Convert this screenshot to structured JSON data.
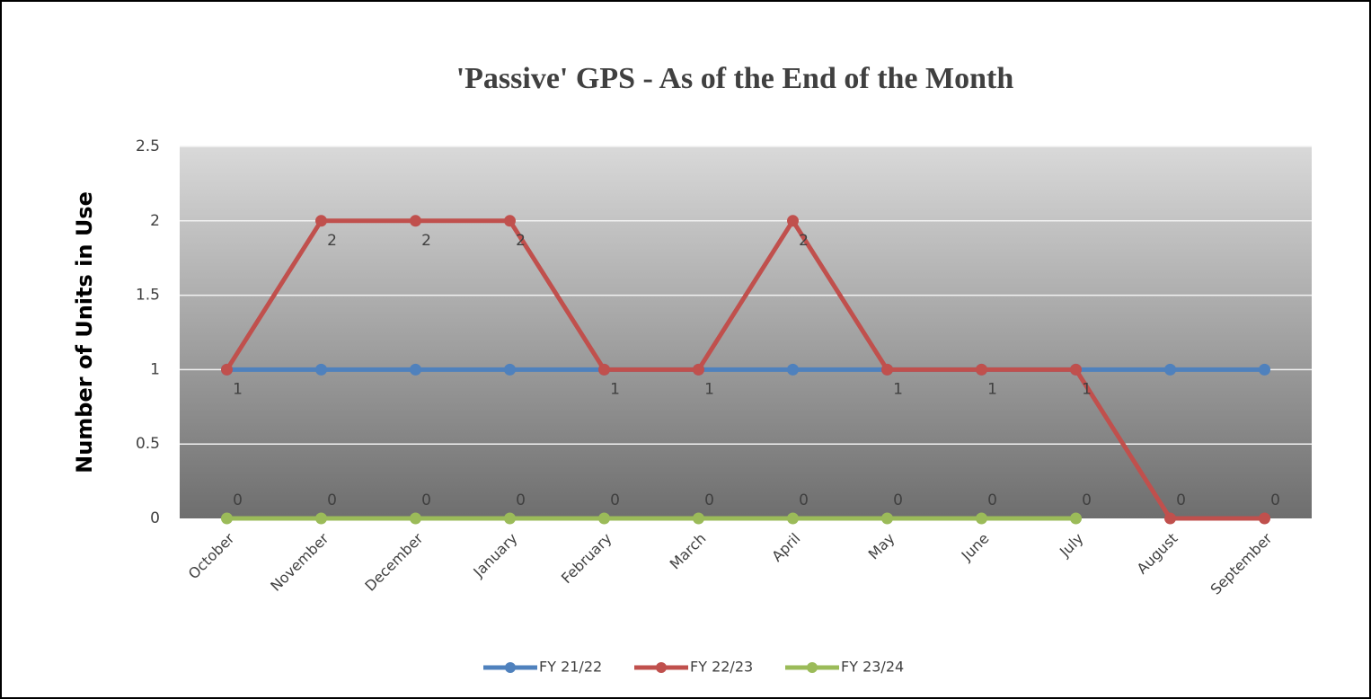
{
  "chart_data": {
    "type": "line",
    "title": "'Passive' GPS - As of the End of the Month",
    "y_label": "Number of Units in Use",
    "categories": [
      "October",
      "November",
      "December",
      "January",
      "February",
      "March",
      "April",
      "May",
      "June",
      "July",
      "August",
      "September"
    ],
    "series": [
      {
        "name": "FY 21/22",
        "color": "#4f81bd",
        "values": [
          1,
          1,
          1,
          1,
          1,
          1,
          1,
          1,
          1,
          1,
          1,
          1
        ],
        "data_labels": false
      },
      {
        "name": "FY 22/23",
        "color": "#c0504d",
        "values": [
          1,
          2,
          2,
          2,
          1,
          1,
          2,
          1,
          1,
          1,
          0,
          0
        ],
        "data_labels": true
      },
      {
        "name": "FY 23/24",
        "color": "#9bbb59",
        "values": [
          0,
          0,
          0,
          0,
          0,
          0,
          0,
          0,
          0,
          0,
          null,
          null
        ],
        "data_labels": true
      }
    ],
    "ylim": [
      0,
      2.5
    ],
    "yticks": [
      0,
      0.5,
      1,
      1.5,
      2,
      2.5
    ],
    "grid": true,
    "legend": "bottom"
  }
}
